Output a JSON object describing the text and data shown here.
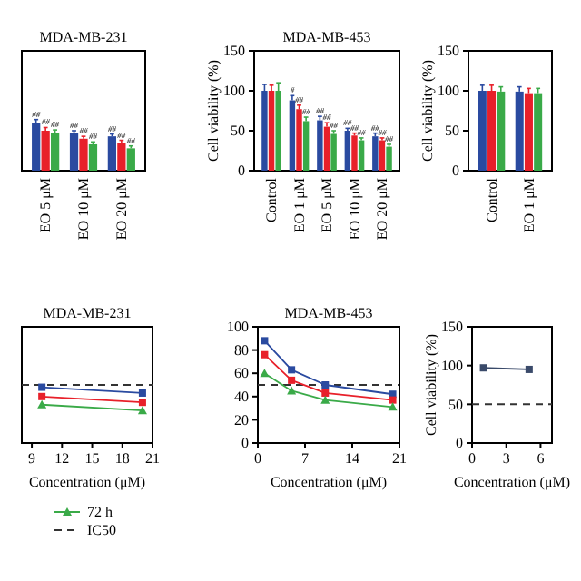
{
  "chart_data": [
    {
      "type": "bar",
      "title": "MDA-MB-231",
      "categories": [
        "EO 5 μM",
        "EO 10 μM",
        "EO 20 μM"
      ],
      "ylim": [
        0,
        150
      ],
      "tick_labels": "x",
      "series": [
        {
          "color": "#2a4aa0",
          "values": [
            60,
            47,
            43
          ],
          "errors": [
            4,
            3,
            3
          ],
          "value_labels": [
            "##",
            "##",
            "##"
          ]
        },
        {
          "color": "#e8202a",
          "values": [
            50,
            40,
            35
          ],
          "errors": [
            4,
            3,
            3
          ],
          "value_labels": [
            "##",
            "##",
            "##"
          ]
        },
        {
          "color": "#3aaa48",
          "values": [
            47,
            33,
            28
          ],
          "errors": [
            4,
            3,
            3
          ],
          "value_labels": [
            "##",
            "##",
            "##"
          ]
        }
      ]
    },
    {
      "type": "bar",
      "title": "MDA-MB-453",
      "ylabel": "Cell viability (%)",
      "categories": [
        "Control",
        "EO 1 μM",
        "EO 5 μM",
        "EO 10 μM",
        "EO 20 μM"
      ],
      "ylim": [
        0,
        150
      ],
      "yticks": [
        0,
        50,
        100,
        150
      ],
      "series": [
        {
          "color": "#2a4aa0",
          "values": [
            100,
            88,
            63,
            50,
            43
          ],
          "errors": [
            8,
            6,
            5,
            3,
            4
          ],
          "value_labels": [
            null,
            "#",
            "##",
            "##",
            "##"
          ]
        },
        {
          "color": "#e8202a",
          "values": [
            100,
            77,
            55,
            44,
            38
          ],
          "errors": [
            7,
            5,
            5,
            3,
            3
          ],
          "value_labels": [
            null,
            "##",
            "##",
            "##",
            "##"
          ]
        },
        {
          "color": "#3aaa48",
          "values": [
            100,
            62,
            46,
            38,
            30
          ],
          "errors": [
            10,
            5,
            4,
            3,
            3
          ],
          "value_labels": [
            null,
            "##",
            "##",
            "##",
            "##"
          ]
        }
      ]
    },
    {
      "type": "bar",
      "ylabel": "Cell viability (%)",
      "categories": [
        "Control",
        "EO 1 μM"
      ],
      "ylim": [
        0,
        150
      ],
      "yticks": [
        0,
        50,
        100,
        150
      ],
      "series": [
        {
          "color": "#2a4aa0",
          "values": [
            100,
            99
          ],
          "errors": [
            7,
            6
          ]
        },
        {
          "color": "#e8202a",
          "values": [
            100,
            97
          ],
          "errors": [
            7,
            6
          ]
        },
        {
          "color": "#3aaa48",
          "values": [
            99,
            97
          ],
          "errors": [
            6,
            6
          ]
        }
      ]
    },
    {
      "type": "line",
      "title": "MDA-MB-231",
      "xlabel": "Concentration (μM)",
      "xlim": [
        8,
        21
      ],
      "xticks": [
        9,
        12,
        15,
        18,
        21
      ],
      "ylim": [
        0,
        100
      ],
      "tick_labels": "x",
      "legend": "bottom",
      "series": [
        {
          "color": "#2a4aa0",
          "marker": "square",
          "x": [
            10,
            20
          ],
          "values": [
            48,
            43
          ]
        },
        {
          "color": "#e8202a",
          "marker": "square",
          "x": [
            10,
            20
          ],
          "values": [
            40,
            35
          ]
        },
        {
          "name": "72 h",
          "color": "#3aaa48",
          "marker": "triangle",
          "x": [
            10,
            20
          ],
          "values": [
            33,
            28
          ]
        }
      ],
      "ref_lines": [
        {
          "axis": "y",
          "value": 50,
          "label": "IC50",
          "line_style": "dashed",
          "color": "#333333"
        }
      ]
    },
    {
      "type": "line",
      "title": "MDA-MB-453",
      "xlabel": "Concentration (μM)",
      "xlim": [
        0,
        21
      ],
      "xticks": [
        0,
        7,
        14,
        21
      ],
      "ylim": [
        0,
        100
      ],
      "yticks": [
        0,
        20,
        40,
        60,
        80,
        100
      ],
      "series": [
        {
          "color": "#2a4aa0",
          "marker": "square",
          "x": [
            1,
            5,
            10,
            20
          ],
          "values": [
            88,
            63,
            50,
            42
          ]
        },
        {
          "color": "#e8202a",
          "marker": "square",
          "x": [
            1,
            5,
            10,
            20
          ],
          "values": [
            76,
            54,
            43,
            37
          ]
        },
        {
          "color": "#3aaa48",
          "marker": "triangle",
          "x": [
            1,
            5,
            10,
            20
          ],
          "values": [
            60,
            45,
            37,
            31
          ]
        }
      ],
      "ref_lines": [
        {
          "axis": "y",
          "value": 50,
          "line_style": "dashed",
          "color": "#333333"
        }
      ]
    },
    {
      "type": "line",
      "ylabel": "Cell viability (%)",
      "xlabel": "Concentration (μM)",
      "xlim": [
        0,
        7
      ],
      "xticks": [
        0,
        3,
        6
      ],
      "ylim": [
        0,
        150
      ],
      "yticks": [
        0,
        50,
        100,
        150
      ],
      "series": [
        {
          "color": "#3a4a6a",
          "marker": "square",
          "x": [
            1,
            5
          ],
          "values": [
            97,
            95
          ]
        }
      ],
      "ref_lines": [
        {
          "axis": "y",
          "value": 50,
          "line_style": "dashed",
          "color": "#333333"
        }
      ]
    }
  ]
}
